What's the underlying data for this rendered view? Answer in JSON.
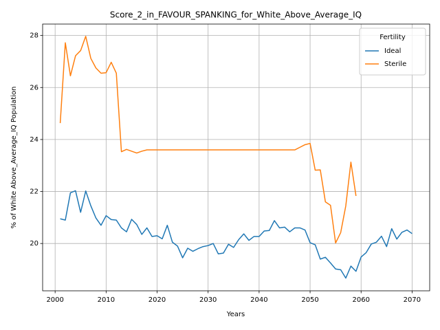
{
  "chart_data": {
    "type": "line",
    "title": "Score_2_in_FAVOUR_SPANKING_for_White_Above_Average_IQ",
    "x_label": "Years",
    "y_label": "% of White Above_Average_IQ Population",
    "legend_title": "Fertility",
    "legend_position": "upper right",
    "grid": true,
    "x": [
      2001,
      2002,
      2003,
      2004,
      2005,
      2006,
      2007,
      2008,
      2009,
      2010,
      2011,
      2012,
      2013,
      2014,
      2015,
      2016,
      2017,
      2018,
      2019,
      2020,
      2021,
      2022,
      2023,
      2024,
      2025,
      2026,
      2027,
      2028,
      2029,
      2030,
      2031,
      2032,
      2033,
      2034,
      2035,
      2036,
      2037,
      2038,
      2039,
      2040,
      2041,
      2042,
      2043,
      2044,
      2045,
      2046,
      2047,
      2048,
      2049,
      2050,
      2051,
      2052,
      2053,
      2054,
      2055,
      2056,
      2057,
      2058,
      2059,
      2060,
      2061,
      2062,
      2063,
      2064,
      2065,
      2066,
      2067,
      2068,
      2069,
      2070
    ],
    "series": [
      {
        "name": "Ideal",
        "color": "#1f77b4",
        "values": [
          20.95,
          20.9,
          21.95,
          22.03,
          21.2,
          22.02,
          21.45,
          20.98,
          20.7,
          21.07,
          20.92,
          20.9,
          20.6,
          20.45,
          20.93,
          20.73,
          20.35,
          20.6,
          20.27,
          20.3,
          20.18,
          20.7,
          20.05,
          19.9,
          19.45,
          19.82,
          19.7,
          19.8,
          19.88,
          19.92,
          20.0,
          19.6,
          19.63,
          19.97,
          19.85,
          20.15,
          20.37,
          20.12,
          20.27,
          20.27,
          20.48,
          20.5,
          20.88,
          20.6,
          20.63,
          20.45,
          20.6,
          20.6,
          20.52,
          20.03,
          19.95,
          19.4,
          19.47,
          19.25,
          19.02,
          18.99,
          18.67,
          19.13,
          18.93,
          19.48,
          19.65,
          19.98,
          20.05,
          20.28,
          19.88,
          20.57,
          20.17,
          20.43,
          20.52,
          20.38
        ]
      },
      {
        "name": "Sterile",
        "color": "#ff7f0e",
        "values": [
          24.63,
          27.72,
          26.45,
          27.22,
          27.42,
          27.97,
          27.12,
          26.75,
          26.55,
          26.57,
          26.97,
          26.55,
          23.53,
          23.62,
          23.55,
          23.48,
          23.55,
          23.6,
          23.6,
          23.6,
          23.6,
          23.6,
          23.6,
          23.6,
          23.6,
          23.6,
          23.6,
          23.6,
          23.6,
          23.6,
          23.6,
          23.6,
          23.6,
          23.6,
          23.6,
          23.6,
          23.6,
          23.6,
          23.6,
          23.6,
          23.6,
          23.6,
          23.6,
          23.6,
          23.6,
          23.6,
          23.6,
          23.7,
          23.8,
          23.85,
          22.82,
          22.83,
          21.6,
          21.47,
          20.02,
          20.42,
          21.45,
          23.13,
          21.83,
          null,
          null,
          null,
          null,
          null,
          null,
          null,
          null,
          null,
          null,
          null
        ]
      }
    ],
    "xlim": [
      1997.55,
      2073.45
    ],
    "xticks": [
      2000,
      2010,
      2020,
      2030,
      2040,
      2050,
      2060,
      2070
    ],
    "ylim": [
      18.18,
      28.44
    ],
    "yticks": [
      20,
      22,
      24,
      26,
      28
    ]
  }
}
